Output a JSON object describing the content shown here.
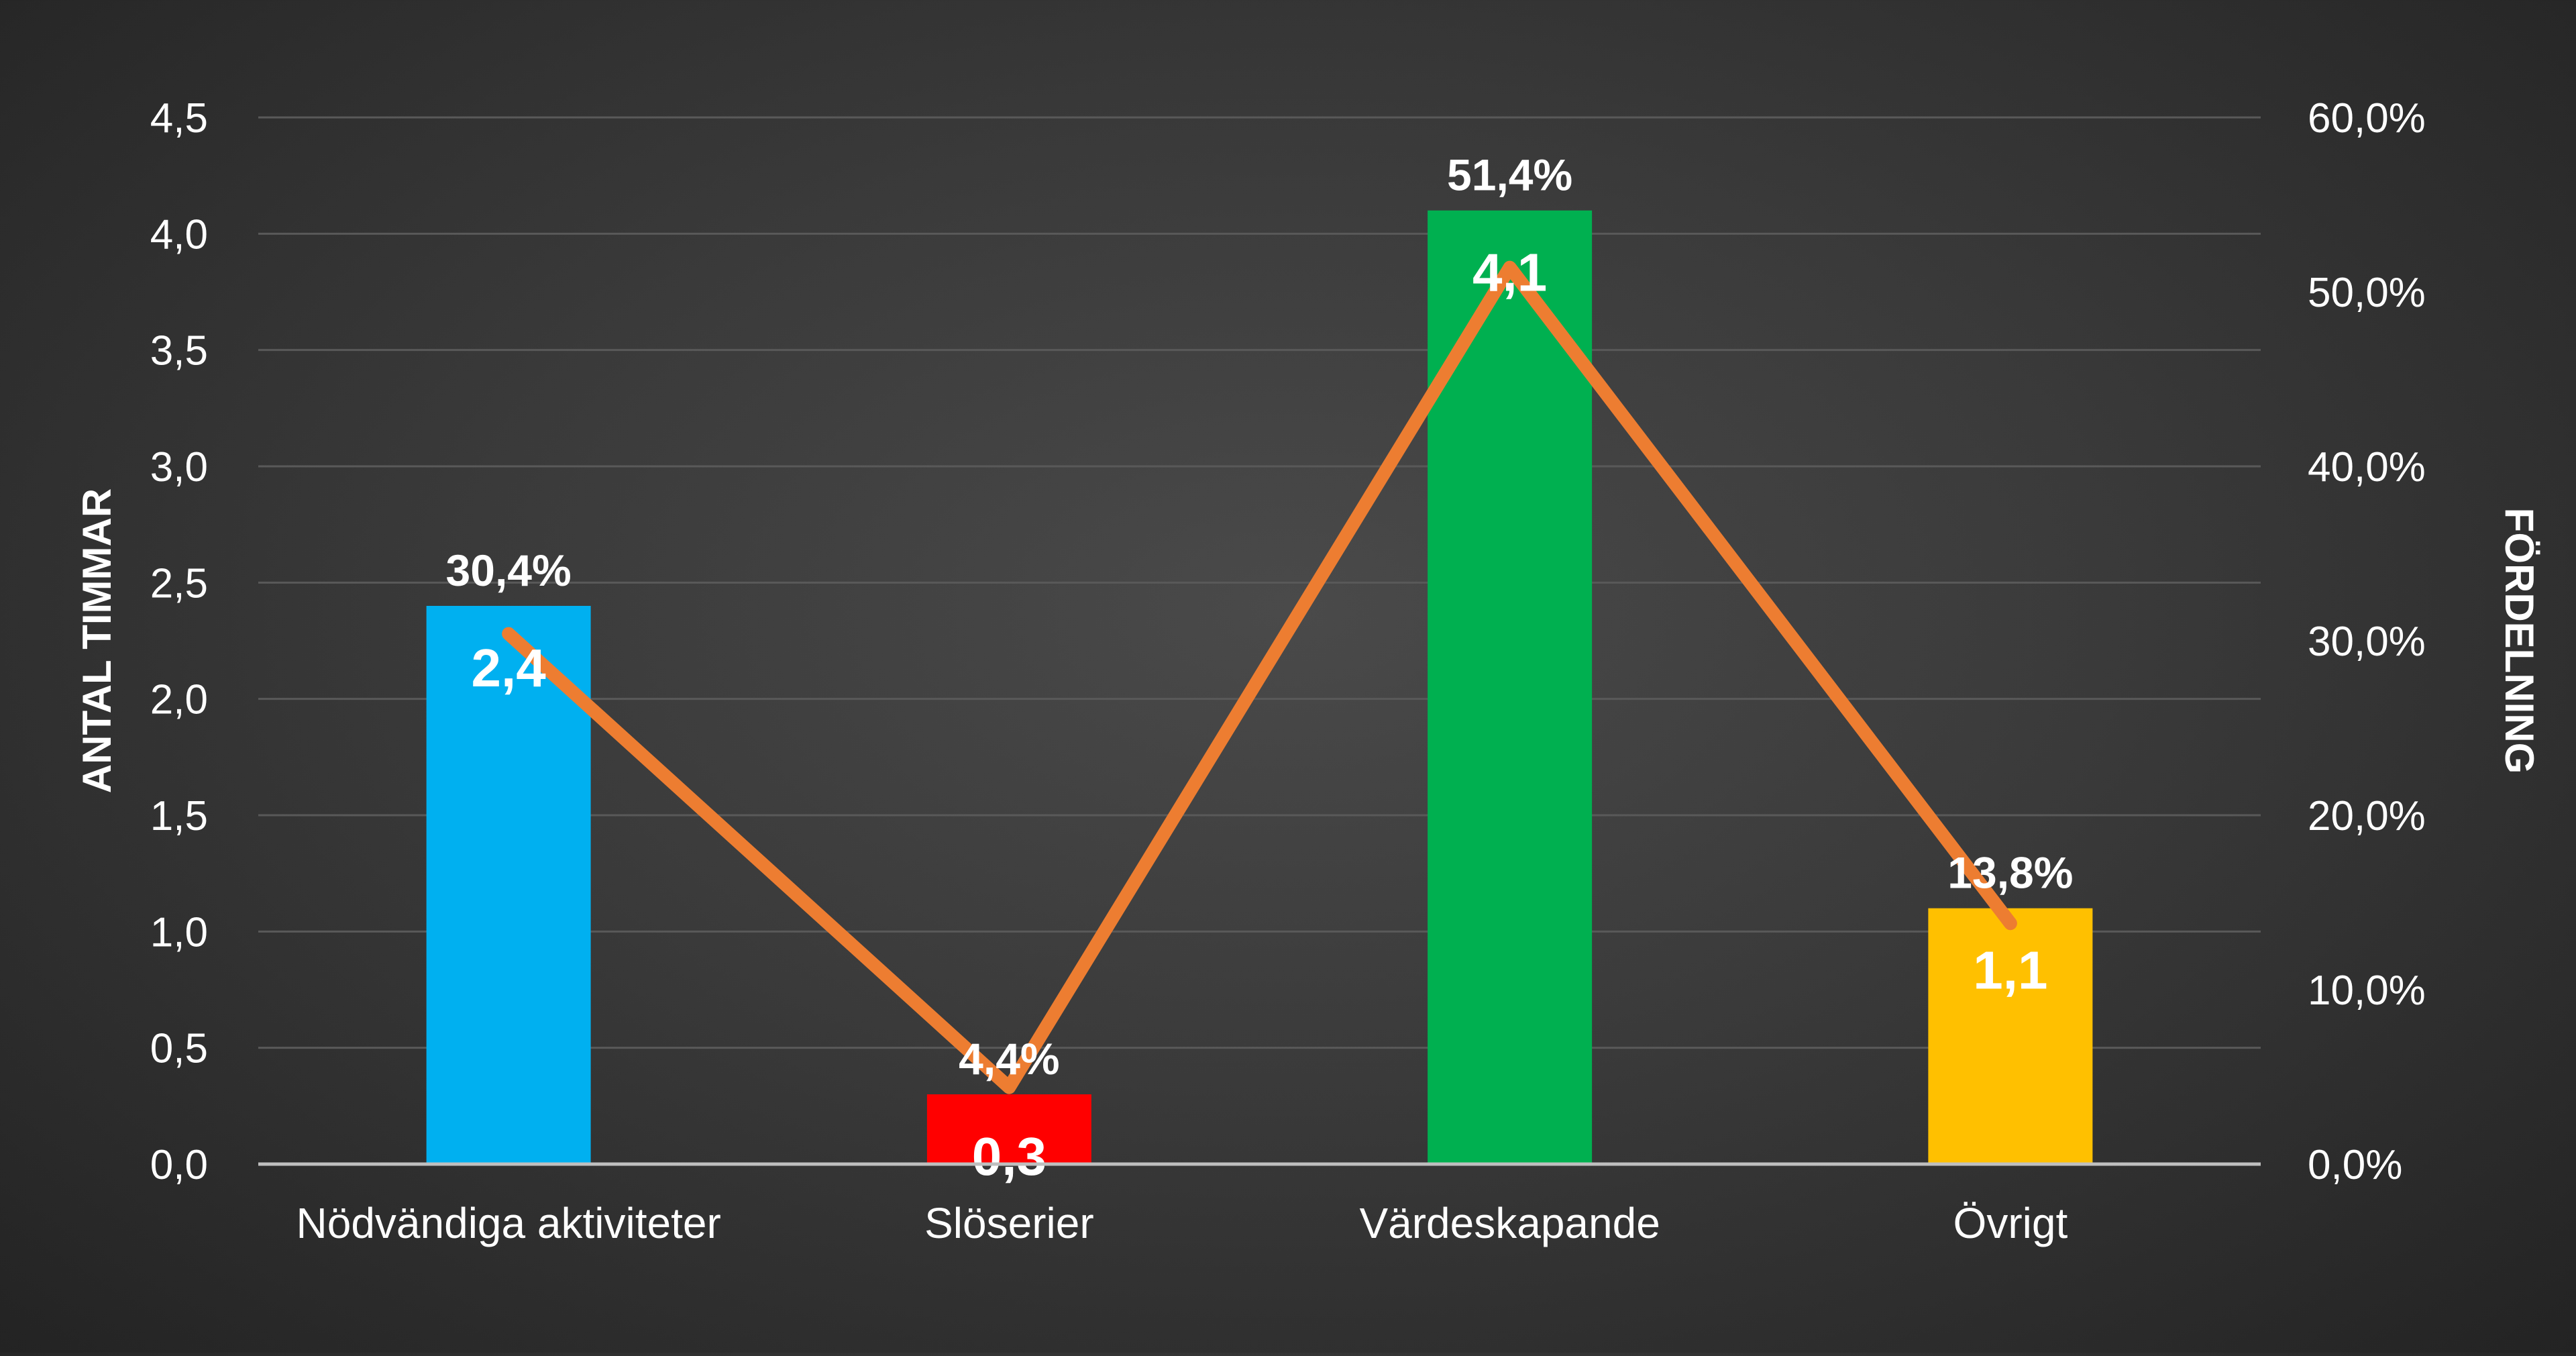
{
  "chart_data": {
    "type": "bar",
    "title": "",
    "categories": [
      "Nödvändiga aktiviteter",
      "Slöserier",
      "Värdeskapande",
      "Övrigt"
    ],
    "series": [
      {
        "axis": "left",
        "type": "bar",
        "values": [
          2.4,
          0.3,
          4.1,
          1.1
        ],
        "value_labels": [
          "2,4",
          "0,3",
          "4,1",
          "1,1"
        ],
        "colors": [
          "#00B0F0",
          "#FF0000",
          "#00B050",
          "#FFC000"
        ]
      },
      {
        "axis": "right",
        "type": "line",
        "values": [
          30.4,
          4.4,
          51.4,
          13.8
        ],
        "value_labels": [
          "30,4%",
          "4,4%",
          "51,4%",
          "13,8%"
        ],
        "color": "#ED7D31"
      }
    ],
    "ylabel": "ANTAL TIMMAR",
    "ylabel_right": "FÖRDELNING",
    "ylim": [
      0,
      4.5
    ],
    "ylim_right": [
      0,
      60
    ],
    "yticks": [
      "0,0",
      "0,5",
      "1,0",
      "1,5",
      "2,0",
      "2,5",
      "3,0",
      "3,5",
      "4,0",
      "4,5"
    ],
    "yticks_right": [
      "0,0%",
      "10,0%",
      "20,0%",
      "30,0%",
      "40,0%",
      "50,0%",
      "60,0%"
    ],
    "grid": true,
    "legend": "none",
    "text_color": "#FFFFFF",
    "grid_color": "#595959"
  }
}
